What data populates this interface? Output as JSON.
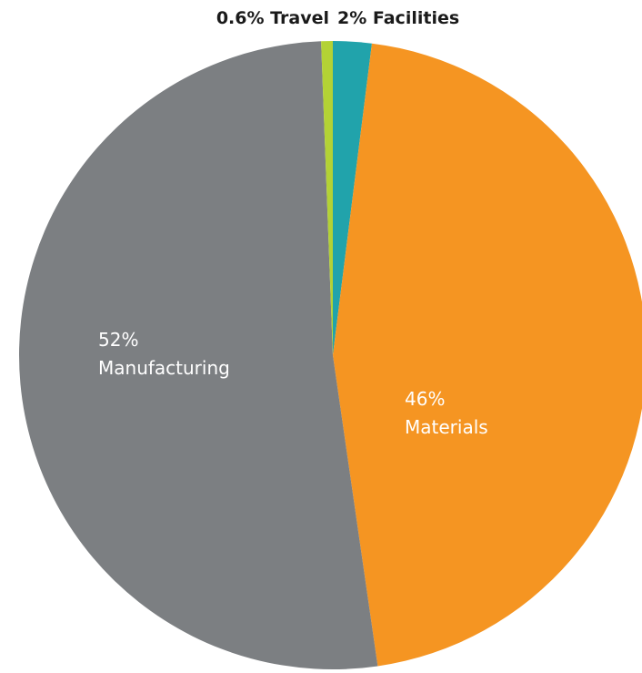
{
  "chart_data": {
    "type": "pie",
    "start_angle_deg": 0,
    "direction": "clockwise",
    "slices": [
      {
        "name": "Facilities",
        "value": 2,
        "pct_label": "2%",
        "label_text": "Facilities",
        "label_placement": "outside",
        "color": "#21a3ab"
      },
      {
        "name": "Materials",
        "value": 46,
        "pct_label": "46%",
        "label_text": "Materials",
        "label_placement": "inside",
        "color": "#f59522"
      },
      {
        "name": "Manufacturing",
        "value": 52,
        "pct_label": "52%",
        "label_text": "Manufacturing",
        "label_placement": "inside",
        "color": "#7c7f82"
      },
      {
        "name": "Travel",
        "value": 0.6,
        "pct_label": "0.6%",
        "label_text": "Travel",
        "label_placement": "outside",
        "color": "#b3d235"
      }
    ]
  }
}
